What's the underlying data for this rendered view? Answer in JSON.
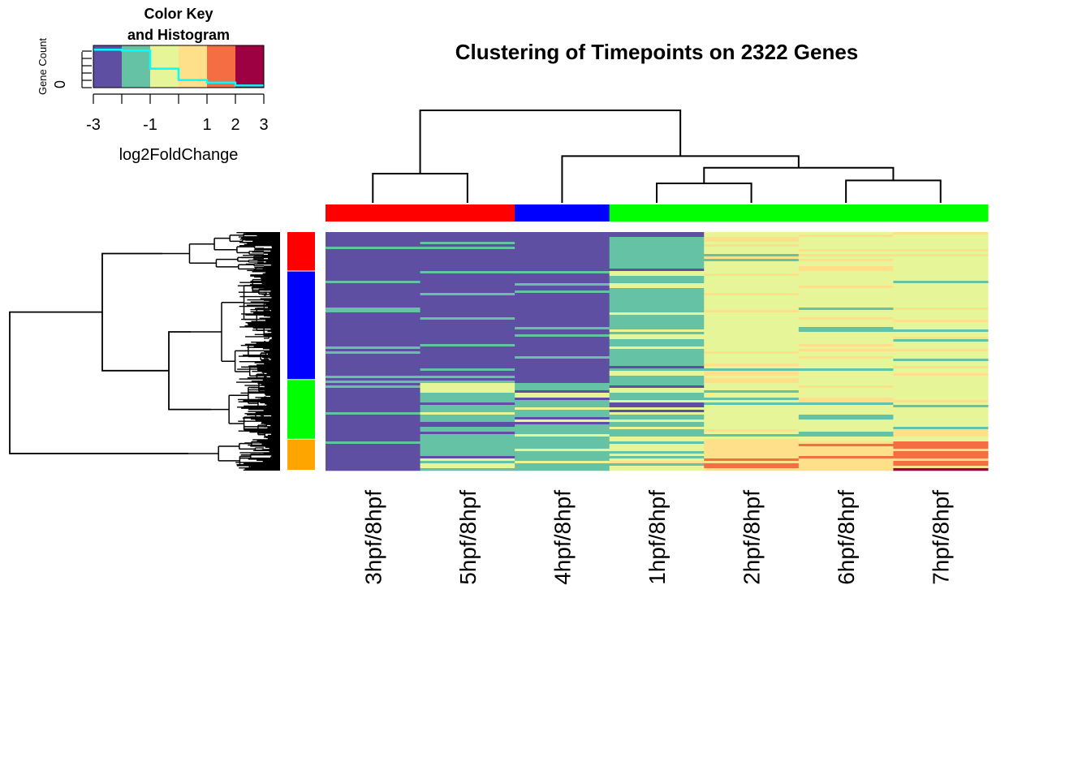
{
  "title": "Clustering of Timepoints on 2322 Genes",
  "color_key": {
    "title_line1": "Color Key",
    "title_line2": "and Histogram",
    "ylabel": "Gene Count",
    "ytick": "0",
    "xlabel": "log2FoldChange",
    "xticks": [
      "-3",
      "-1",
      "1",
      "2",
      "3"
    ],
    "xtick_values": [
      -3,
      -1,
      1,
      2,
      3
    ],
    "breaks": [
      -3,
      -2,
      -1,
      0,
      1,
      2,
      3
    ],
    "colors": [
      "#5e4fa2",
      "#66c2a5",
      "#e6f598",
      "#fee08b",
      "#f46d43",
      "#9e0142"
    ],
    "histogram_color": "#00ffff"
  },
  "chart_data": {
    "type": "heatmap",
    "title": "Clustering of Timepoints on 2322 Genes",
    "columns": [
      "3hpf/8hpf",
      "5hpf/8hpf",
      "4hpf/8hpf",
      "1hpf/8hpf",
      "2hpf/8hpf",
      "6hpf/8hpf",
      "7hpf/8hpf"
    ],
    "column_clusters": {
      "colors": [
        "#ff0000",
        "#ff0000",
        "#0000ff",
        "#00ff00",
        "#00ff00",
        "#00ff00",
        "#00ff00"
      ]
    },
    "row_clusters": [
      {
        "color": "#ff0000",
        "fraction": 0.165
      },
      {
        "color": "#0000ff",
        "fraction": 0.455
      },
      {
        "color": "#00ff00",
        "fraction": 0.25
      },
      {
        "color": "#ffa500",
        "fraction": 0.13
      }
    ],
    "column_dendrogram": {
      "merges": [
        [
          0,
          1,
          0.3
        ],
        [
          3,
          4,
          0.2
        ],
        [
          5,
          6,
          0.23
        ],
        [
          8,
          9,
          0.36
        ],
        [
          2,
          10,
          0.48
        ],
        [
          7,
          11,
          0.95
        ]
      ]
    },
    "dominant_values": [
      [
        -2.5,
        -2.5,
        -2.5,
        -2.5
      ],
      [
        -2.5,
        -2.5,
        -2.0,
        -1.5
      ],
      [
        -2.5,
        -2.5,
        -1.5,
        -1.5
      ],
      [
        -1.5,
        -1.5,
        -1.5,
        -0.5
      ],
      [
        -1.0,
        -1.0,
        -1.0,
        0.5
      ],
      [
        -0.5,
        -0.5,
        -0.5,
        0.5
      ],
      [
        -1.0,
        -0.5,
        -0.5,
        1.0
      ]
    ],
    "color_scale": {
      "min": -3,
      "max": 3
    }
  }
}
